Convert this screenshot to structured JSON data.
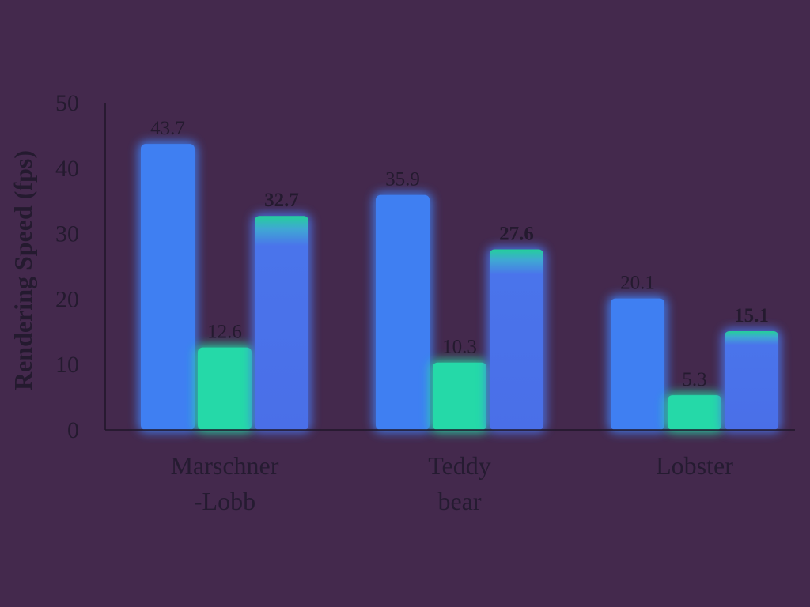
{
  "chart_data": {
    "type": "bar",
    "title": "",
    "ylabel": "Rendering Speed (fps)",
    "xlabel": "",
    "ylim": [
      0,
      50
    ],
    "yticks": [
      0,
      10,
      20,
      30,
      40,
      50
    ],
    "categories": [
      [
        "Marschner",
        "-Lobb"
      ],
      [
        "Teddy",
        "bear"
      ],
      [
        "Lobster"
      ]
    ],
    "series": [
      {
        "values": [
          43.7,
          35.9,
          20.1
        ],
        "color": "#3f7ff2",
        "labels": [
          "43.7",
          "35.9",
          "20.1"
        ],
        "bold": false
      },
      {
        "values": [
          12.6,
          10.3,
          5.3
        ],
        "color": "#25d9a8",
        "labels": [
          "12.6",
          "10.3",
          "5.3"
        ],
        "bold": false
      },
      {
        "values": [
          32.7,
          27.6,
          15.1
        ],
        "color": "#4a74eb",
        "accent": "#24cf9b",
        "labels": [
          "32.7",
          "27.6",
          "15.1"
        ],
        "bold": true
      }
    ],
    "grid": false,
    "legend": "none"
  },
  "colors": {
    "background": "#44294d",
    "axis": "#1e1628",
    "text": "#241a2f"
  }
}
